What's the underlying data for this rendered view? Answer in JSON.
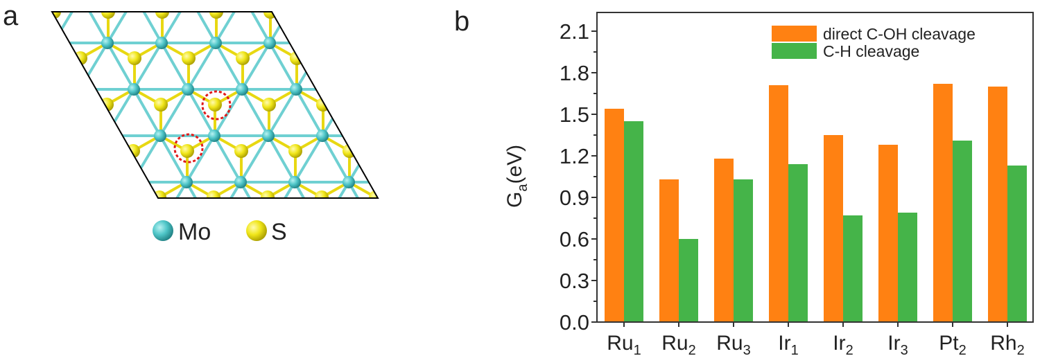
{
  "panel_a": {
    "label": "a",
    "legend": [
      {
        "name": "Mo",
        "color": "#4fc6c8"
      },
      {
        "name": "S",
        "color": "#f0e61a"
      }
    ]
  },
  "panel_b": {
    "label": "b"
  },
  "chart_data": {
    "type": "bar",
    "title": "",
    "xlabel": "",
    "ylabel": "Ga(eV)",
    "ylabel_main": "G",
    "ylabel_sub": "a",
    "ylabel_unit": "(eV)",
    "ylim": [
      0,
      2.2
    ],
    "yticks": [
      "0.0",
      "0.3",
      "0.6",
      "0.9",
      "1.2",
      "1.5",
      "1.8",
      "2.1"
    ],
    "categories": [
      {
        "base": "Ru",
        "sub": "1"
      },
      {
        "base": "Ru",
        "sub": "2"
      },
      {
        "base": "Ru",
        "sub": "3"
      },
      {
        "base": "Ir",
        "sub": "1"
      },
      {
        "base": "Ir",
        "sub": "2"
      },
      {
        "base": "Ir",
        "sub": "3"
      },
      {
        "base": "Pt",
        "sub": "2"
      },
      {
        "base": "Rh",
        "sub": "2"
      }
    ],
    "series": [
      {
        "name": "direct C-OH cleavage",
        "color": "#ff8112",
        "values": [
          1.54,
          1.03,
          1.18,
          1.71,
          1.35,
          1.28,
          1.72,
          1.7
        ]
      },
      {
        "name": "C-H cleavage",
        "color": "#45b449",
        "values": [
          1.45,
          0.6,
          1.03,
          1.14,
          0.77,
          0.79,
          1.31,
          1.13
        ]
      }
    ],
    "legend_position": "top-right",
    "grid": false
  }
}
